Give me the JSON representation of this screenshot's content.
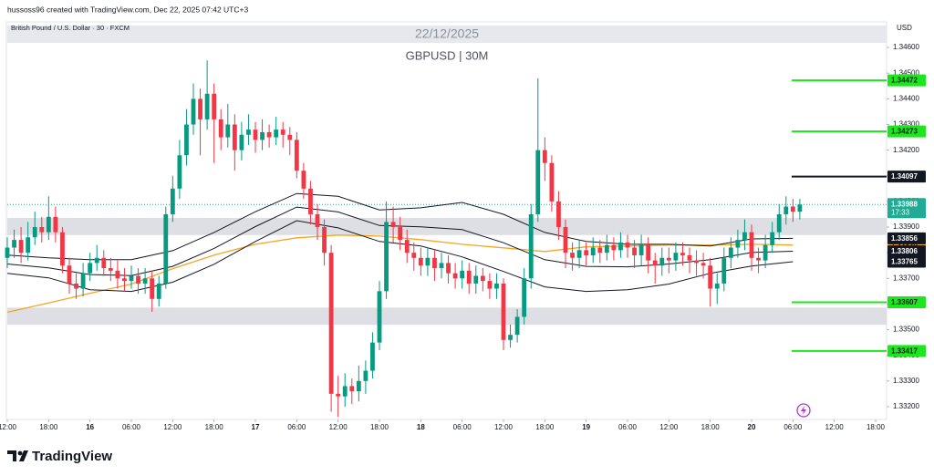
{
  "header": {
    "credit": "hussoss96 created with TradingView.com, Dec 22, 2025 07:42 UTC+3",
    "brand": "TradingView"
  },
  "chart_data": {
    "type": "candlestick",
    "title": "22/12/2025",
    "subtitle": "GBPUSD | 30M",
    "instrument": "British Pound / U.S. Dollar · 30 · FXCM",
    "currency": "USD",
    "countdown": "17:33",
    "up_color": "#089981",
    "down_color": "#f23645",
    "xlim": [
      0,
      126
    ],
    "xticks": [
      {
        "value": 0,
        "label": "12:00"
      },
      {
        "value": 6,
        "label": "18:00"
      },
      {
        "value": 12,
        "label": "16"
      },
      {
        "value": 18,
        "label": "06:00"
      },
      {
        "value": 24,
        "label": "12:00"
      },
      {
        "value": 30,
        "label": "18:00"
      },
      {
        "value": 36,
        "label": "17"
      },
      {
        "value": 42,
        "label": "06:00"
      },
      {
        "value": 48,
        "label": "12:00"
      },
      {
        "value": 54,
        "label": "18:00"
      },
      {
        "value": 60,
        "label": "18"
      },
      {
        "value": 66,
        "label": "06:00"
      },
      {
        "value": 72,
        "label": "12:00"
      },
      {
        "value": 78,
        "label": "18:00"
      },
      {
        "value": 84,
        "label": "19"
      },
      {
        "value": 90,
        "label": "06:00"
      },
      {
        "value": 96,
        "label": "12:00"
      },
      {
        "value": 102,
        "label": "18:00"
      },
      {
        "value": 108,
        "label": "20"
      },
      {
        "value": 114,
        "label": "06:00"
      },
      {
        "value": 120,
        "label": "12:00"
      },
      {
        "value": 126,
        "label": "18:00"
      }
    ],
    "ylim": [
      1.3315,
      1.347
    ],
    "yticks": [
      {
        "value": 1.332,
        "label": "1.33200"
      },
      {
        "value": 1.333,
        "label": "1.33300"
      },
      {
        "value": 1.334,
        "label": "1.33400"
      },
      {
        "value": 1.335,
        "label": "1.33500"
      },
      {
        "value": 1.336,
        "label": "1.33600"
      },
      {
        "value": 1.337,
        "label": "1.33700"
      },
      {
        "value": 1.338,
        "label": "1.33800"
      },
      {
        "value": 1.339,
        "label": "1.33900"
      },
      {
        "value": 1.34,
        "label": "1.34000"
      },
      {
        "value": 1.341,
        "label": "1.34100"
      },
      {
        "value": 1.342,
        "label": "1.34200"
      },
      {
        "value": 1.343,
        "label": "1.34300"
      },
      {
        "value": 1.344,
        "label": "1.34400"
      },
      {
        "value": 1.345,
        "label": "1.34500"
      },
      {
        "value": 1.346,
        "label": "1.34600"
      }
    ],
    "open": [
      1.3378,
      1.3382,
      1.3385,
      1.338,
      1.3386,
      1.339,
      1.3388,
      1.3394,
      1.3388,
      1.3375,
      1.3368,
      1.3366,
      1.3372,
      1.3376,
      1.3378,
      1.3374,
      1.3373,
      1.337,
      1.3369,
      1.3371,
      1.3368,
      1.337,
      1.3362,
      1.3368,
      1.3395,
      1.3405,
      1.3418,
      1.343,
      1.344,
      1.3432,
      1.3442,
      1.3432,
      1.3425,
      1.343,
      1.342,
      1.3426,
      1.3428,
      1.3424,
      1.3427,
      1.3425,
      1.3428,
      1.3426,
      1.3424,
      1.3412,
      1.3405,
      1.3395,
      1.339,
      1.338,
      1.3325,
      1.3324,
      1.3328,
      1.3326,
      1.333,
      1.3334,
      1.3345,
      1.3365,
      1.3392,
      1.339,
      1.3385,
      1.338,
      1.3378,
      1.3375,
      1.3378,
      1.3374,
      1.3376,
      1.3372,
      1.337,
      1.3373,
      1.3368,
      1.3371,
      1.3369,
      1.3366,
      1.3368,
      1.3346,
      1.3348,
      1.3355,
      1.337,
      1.3395,
      1.342,
      1.3415,
      1.34,
      1.339,
      1.338,
      1.3378,
      1.3381,
      1.3379,
      1.3382,
      1.338,
      1.3383,
      1.3381,
      1.3384,
      1.3382,
      1.3379,
      1.3383,
      1.3377,
      1.3375,
      1.3378,
      1.3377,
      1.338,
      1.3379,
      1.3377,
      1.3376,
      1.3375,
      1.3366,
      1.3368,
      1.3378,
      1.3382,
      1.3385,
      1.3388,
      1.3378,
      1.3377,
      1.3383,
      1.3388,
      1.3395,
      1.3398,
      1.3396
    ],
    "high": [
      1.3386,
      1.3389,
      1.339,
      1.3392,
      1.3396,
      1.3394,
      1.3402,
      1.3398,
      1.339,
      1.3378,
      1.3372,
      1.3376,
      1.338,
      1.3383,
      1.3381,
      1.3378,
      1.3377,
      1.3374,
      1.3375,
      1.3374,
      1.3374,
      1.3373,
      1.3371,
      1.3398,
      1.341,
      1.3424,
      1.3436,
      1.3446,
      1.3444,
      1.3455,
      1.3446,
      1.3436,
      1.3438,
      1.3434,
      1.3431,
      1.3434,
      1.3431,
      1.3432,
      1.343,
      1.3433,
      1.3431,
      1.3429,
      1.3427,
      1.3415,
      1.3408,
      1.3399,
      1.3393,
      1.3383,
      1.3332,
      1.3333,
      1.3331,
      1.3336,
      1.3338,
      1.3349,
      1.3369,
      1.34,
      1.3398,
      1.3394,
      1.3389,
      1.3384,
      1.3382,
      1.3382,
      1.3381,
      1.338,
      1.3379,
      1.3376,
      1.3377,
      1.3376,
      1.3375,
      1.3374,
      1.3372,
      1.3372,
      1.337,
      1.3352,
      1.3358,
      1.3374,
      1.3399,
      1.3448,
      1.3425,
      1.3418,
      1.3404,
      1.3393,
      1.3384,
      1.3385,
      1.3384,
      1.3386,
      1.3385,
      1.3387,
      1.3386,
      1.3388,
      1.3387,
      1.3385,
      1.3387,
      1.3386,
      1.338,
      1.3382,
      1.3382,
      1.3384,
      1.3384,
      1.3382,
      1.3381,
      1.338,
      1.3378,
      1.3372,
      1.3382,
      1.3386,
      1.3389,
      1.3393,
      1.3391,
      1.3382,
      1.3387,
      1.3392,
      1.3399,
      1.3402,
      1.3401,
      1.3401
    ],
    "low": [
      1.3374,
      1.3378,
      1.3376,
      1.3377,
      1.3383,
      1.3384,
      1.3385,
      1.3384,
      1.3372,
      1.3364,
      1.3362,
      1.3363,
      1.3369,
      1.3373,
      1.3371,
      1.3369,
      1.3366,
      1.3365,
      1.3366,
      1.3364,
      1.3364,
      1.3357,
      1.3359,
      1.3366,
      1.3392,
      1.3401,
      1.3414,
      1.3426,
      1.3418,
      1.3428,
      1.3415,
      1.342,
      1.3421,
      1.3412,
      1.3416,
      1.3422,
      1.3419,
      1.342,
      1.3421,
      1.3422,
      1.3421,
      1.3418,
      1.3409,
      1.3401,
      1.3391,
      1.3385,
      1.3375,
      1.3318,
      1.3316,
      1.332,
      1.3321,
      1.3322,
      1.3325,
      1.3331,
      1.3342,
      1.3362,
      1.3384,
      1.3381,
      1.3376,
      1.3373,
      1.3371,
      1.3371,
      1.3369,
      1.337,
      1.3368,
      1.3366,
      1.3366,
      1.3364,
      1.3364,
      1.3365,
      1.3362,
      1.3362,
      1.3342,
      1.3343,
      1.3345,
      1.3352,
      1.3366,
      1.3392,
      1.3408,
      1.3396,
      1.3385,
      1.3374,
      1.3373,
      1.3374,
      1.3375,
      1.3376,
      1.3376,
      1.3377,
      1.3377,
      1.3378,
      1.3378,
      1.3374,
      1.3375,
      1.3372,
      1.3368,
      1.3371,
      1.3372,
      1.3373,
      1.3375,
      1.3372,
      1.3371,
      1.337,
      1.3359,
      1.336,
      1.3365,
      1.3374,
      1.3378,
      1.3381,
      1.3373,
      1.3372,
      1.3374,
      1.338,
      1.3385,
      1.3391,
      1.3392,
      1.3393
    ],
    "close": [
      1.3382,
      1.3385,
      1.338,
      1.3386,
      1.339,
      1.3388,
      1.3394,
      1.3388,
      1.3375,
      1.3368,
      1.3366,
      1.3372,
      1.3376,
      1.3378,
      1.3374,
      1.3373,
      1.337,
      1.3369,
      1.3371,
      1.3368,
      1.337,
      1.3362,
      1.3368,
      1.3395,
      1.3405,
      1.3418,
      1.343,
      1.344,
      1.3432,
      1.3442,
      1.3432,
      1.3425,
      1.343,
      1.342,
      1.3426,
      1.3428,
      1.3424,
      1.3427,
      1.3425,
      1.3428,
      1.3426,
      1.3424,
      1.3412,
      1.3405,
      1.3395,
      1.339,
      1.338,
      1.3325,
      1.3324,
      1.3328,
      1.3326,
      1.333,
      1.3334,
      1.3345,
      1.3365,
      1.3392,
      1.339,
      1.3385,
      1.338,
      1.3378,
      1.3375,
      1.3378,
      1.3374,
      1.3376,
      1.3372,
      1.337,
      1.3373,
      1.3368,
      1.3371,
      1.3369,
      1.3366,
      1.3368,
      1.3346,
      1.3348,
      1.3355,
      1.337,
      1.3395,
      1.342,
      1.3415,
      1.34,
      1.339,
      1.338,
      1.3378,
      1.3381,
      1.3379,
      1.3382,
      1.338,
      1.3383,
      1.3381,
      1.3384,
      1.3382,
      1.3379,
      1.3383,
      1.3377,
      1.3375,
      1.3378,
      1.3377,
      1.338,
      1.3379,
      1.3377,
      1.3376,
      1.3375,
      1.3366,
      1.3368,
      1.3378,
      1.3382,
      1.3385,
      1.3388,
      1.3378,
      1.3377,
      1.3383,
      1.3388,
      1.3395,
      1.3398,
      1.3396,
      1.33988
    ],
    "ma": [
      {
        "color": "#f5a623",
        "x": [
          0,
          6,
          12,
          18,
          24,
          30,
          36,
          42,
          48,
          54,
          60,
          66,
          72,
          78,
          84,
          90,
          96,
          102,
          108,
          114
        ],
        "values": [
          1.33568,
          1.33604,
          1.33642,
          1.33678,
          1.33738,
          1.33791,
          1.33833,
          1.33858,
          1.33869,
          1.33865,
          1.33851,
          1.33833,
          1.33819,
          1.33805,
          1.33823,
          1.33826,
          1.3383,
          1.3383,
          1.33833,
          1.3383
        ],
        "last": {
          "value": 1.3383,
          "label": "1.33830"
        }
      },
      {
        "color": "#131722",
        "x": [
          0,
          6,
          12,
          18,
          24,
          30,
          36,
          42,
          48,
          54,
          60,
          66,
          72,
          78,
          84,
          90,
          96,
          102,
          108,
          114
        ],
        "values": [
          1.33791,
          1.3378,
          1.33773,
          1.33773,
          1.33808,
          1.33879,
          1.3396,
          1.34031,
          1.3402,
          1.33967,
          1.33975,
          1.33996,
          1.3395,
          1.33879,
          1.33844,
          1.33833,
          1.33833,
          1.33826,
          1.33854,
          1.33856
        ],
        "last": 1.33856
      },
      {
        "color": "#131722",
        "x": [
          0,
          6,
          12,
          18,
          24,
          30,
          36,
          42,
          48,
          54,
          60,
          66,
          72,
          78,
          84,
          90,
          96,
          102,
          108,
          114
        ],
        "values": [
          1.33756,
          1.33741,
          1.33715,
          1.33711,
          1.33747,
          1.33817,
          1.33902,
          1.33978,
          1.33959,
          1.33906,
          1.33901,
          1.3389,
          1.33839,
          1.33773,
          1.33747,
          1.33745,
          1.33756,
          1.33773,
          1.33801,
          1.33806
        ],
        "last": 1.33806
      },
      {
        "color": "#131722",
        "x": [
          0,
          6,
          12,
          18,
          24,
          30,
          36,
          42,
          48,
          54,
          60,
          66,
          72,
          78,
          84,
          90,
          96,
          102,
          108,
          114
        ],
        "values": [
          1.3372,
          1.33702,
          1.33656,
          1.33649,
          1.33685,
          1.33755,
          1.33844,
          1.33925,
          1.33897,
          1.33844,
          1.33826,
          1.33784,
          1.33727,
          1.33667,
          1.33649,
          1.33656,
          1.33678,
          1.3372,
          1.33748,
          1.33765
        ],
        "last": 1.33765
      }
    ],
    "levels": [
      {
        "value": 1.34472,
        "color": "#1ee61e"
      },
      {
        "value": 1.34273,
        "color": "#1ee61e"
      },
      {
        "value": 1.34097,
        "color": "#131722"
      },
      {
        "value": 1.33607,
        "color": "#1ee61e"
      },
      {
        "value": 1.33417,
        "color": "#1ee61e"
      }
    ],
    "zones": [
      [
        1.33936,
        1.33869
      ],
      [
        1.33586,
        1.33519
      ]
    ],
    "price_color": "#22ab94"
  }
}
